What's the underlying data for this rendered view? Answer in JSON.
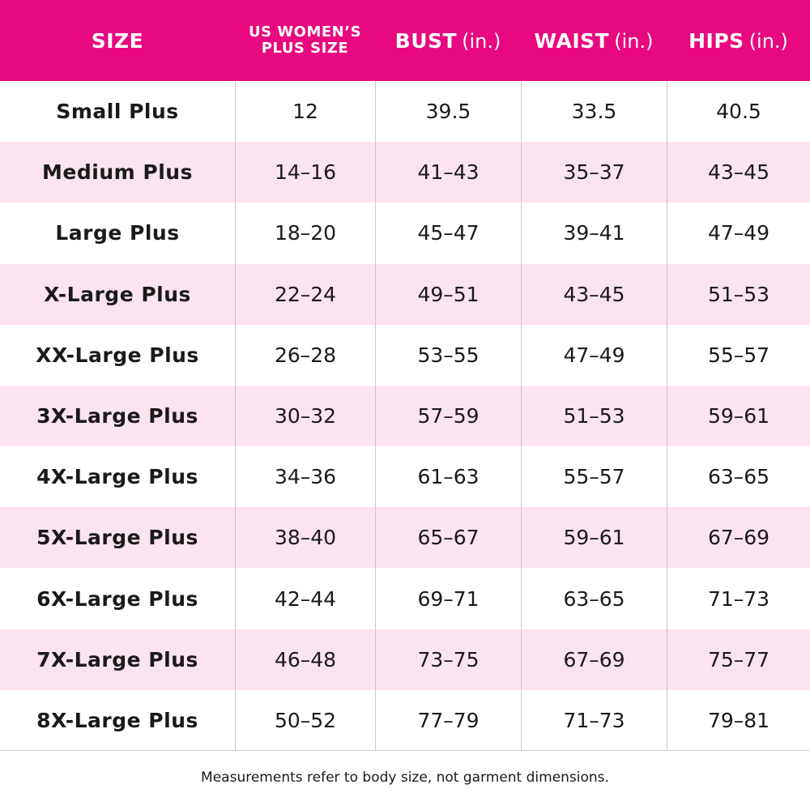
{
  "table": {
    "header": [
      {
        "label": "SIZE"
      },
      {
        "label": "US WOMEN’S PLUS SIZE"
      },
      {
        "label": "BUST",
        "unit": "(in.)"
      },
      {
        "label": "WAIST",
        "unit": "(in.)"
      },
      {
        "label": "HIPS",
        "unit": "(in.)"
      }
    ],
    "rows": [
      [
        "Small Plus",
        "12",
        "39.5",
        "33.5",
        "40.5"
      ],
      [
        "Medium Plus",
        "14–16",
        "41–43",
        "35–37",
        "43–45"
      ],
      [
        "Large Plus",
        "18–20",
        "45–47",
        "39–41",
        "47–49"
      ],
      [
        "X-Large Plus",
        "22–24",
        "49–51",
        "43–45",
        "51–53"
      ],
      [
        "XX-Large Plus",
        "26–28",
        "53–55",
        "47–49",
        "55–57"
      ],
      [
        "3X-Large Plus",
        "30–32",
        "57–59",
        "51–53",
        "59–61"
      ],
      [
        "4X-Large Plus",
        "34–36",
        "61–63",
        "55–57",
        "63–65"
      ],
      [
        "5X-Large Plus",
        "38–40",
        "65–67",
        "59–61",
        "67–69"
      ],
      [
        "6X-Large Plus",
        "42–44",
        "69–71",
        "63–65",
        "71–73"
      ],
      [
        "7X-Large Plus",
        "46–48",
        "73–75",
        "67–69",
        "75–77"
      ],
      [
        "8X-Large Plus",
        "50–52",
        "77–79",
        "71–73",
        "79–81"
      ]
    ]
  },
  "footnote": "Measurements refer to body size, not garment dimensions."
}
